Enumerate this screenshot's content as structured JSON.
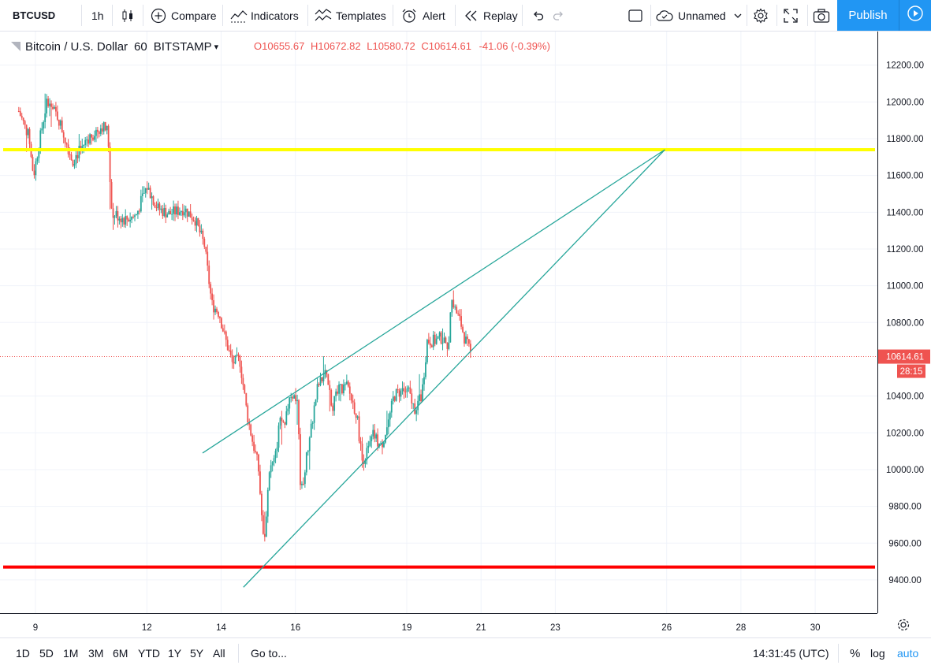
{
  "toolbar": {
    "symbol": "BTCUSD",
    "interval": "1h",
    "compare": "Compare",
    "indicators": "Indicators",
    "templates": "Templates",
    "alert": "Alert",
    "replay": "Replay",
    "layout_name": "Unnamed",
    "publish": "Publish"
  },
  "legend": {
    "title": "Bitcoin / U.S. Dollar",
    "interval": "60",
    "exchange": "BITSTAMP",
    "open_label": "O",
    "open": "10655.67",
    "high_label": "H",
    "high": "10672.82",
    "low_label": "L",
    "low": "10580.72",
    "close_label": "C",
    "close": "10614.61",
    "change": "-41.06 (-0.39%)"
  },
  "price_badge": {
    "price": "10614.61",
    "countdown": "28:15"
  },
  "bottom": {
    "ranges": [
      "1D",
      "5D",
      "1M",
      "3M",
      "6M",
      "YTD",
      "1Y",
      "5Y",
      "All"
    ],
    "goto": "Go to...",
    "clock": "14:31:45 (UTC)",
    "percent": "%",
    "log": "log",
    "auto": "auto"
  },
  "colors": {
    "up": "#26a69a",
    "down": "#ef5350",
    "accent": "#2196f3",
    "resistance": "#ffff00",
    "support": "#ff0000",
    "trendline": "#26a69a"
  },
  "chart_data": {
    "type": "candlestick",
    "x_ticks": [
      "9",
      "12",
      "14",
      "16",
      "19",
      "21",
      "23",
      "26",
      "28",
      "30"
    ],
    "y_ticks": [
      "12200.00",
      "12000.00",
      "11800.00",
      "11600.00",
      "11400.00",
      "11200.00",
      "11000.00",
      "10800.00",
      "10400.00",
      "10200.00",
      "10000.00",
      "9800.00",
      "9600.00",
      "9400.00"
    ],
    "ylim": [
      9240,
      12330
    ],
    "last_price": 10614.61,
    "x_days": [
      8.55,
      20.75
    ],
    "keypoints": [
      [
        8.55,
        11950
      ],
      [
        8.8,
        11820
      ],
      [
        8.95,
        11600
      ],
      [
        9.05,
        11720
      ],
      [
        9.3,
        12000
      ],
      [
        9.6,
        11920
      ],
      [
        10.0,
        11680
      ],
      [
        10.4,
        11800
      ],
      [
        10.8,
        11870
      ],
      [
        10.95,
        11840
      ],
      [
        11.05,
        11400
      ],
      [
        11.4,
        11360
      ],
      [
        11.7,
        11380
      ],
      [
        12.0,
        11540
      ],
      [
        12.3,
        11420
      ],
      [
        12.6,
        11390
      ],
      [
        13.0,
        11420
      ],
      [
        13.3,
        11360
      ],
      [
        13.55,
        11220
      ],
      [
        13.75,
        10900
      ],
      [
        13.95,
        10850
      ],
      [
        14.1,
        10720
      ],
      [
        14.3,
        10580
      ],
      [
        14.5,
        10600
      ],
      [
        14.7,
        10300
      ],
      [
        14.85,
        10150
      ],
      [
        15.0,
        10020
      ],
      [
        15.15,
        9580
      ],
      [
        15.3,
        10000
      ],
      [
        15.45,
        10050
      ],
      [
        15.6,
        10300
      ],
      [
        15.7,
        10200
      ],
      [
        15.85,
        10420
      ],
      [
        16.05,
        10380
      ],
      [
        16.15,
        9860
      ],
      [
        16.35,
        10130
      ],
      [
        16.6,
        10450
      ],
      [
        16.8,
        10520
      ],
      [
        17.0,
        10350
      ],
      [
        17.2,
        10440
      ],
      [
        17.4,
        10450
      ],
      [
        17.65,
        10300
      ],
      [
        17.8,
        10050
      ],
      [
        17.95,
        10100
      ],
      [
        18.1,
        10190
      ],
      [
        18.3,
        10120
      ],
      [
        18.5,
        10250
      ],
      [
        18.65,
        10400
      ],
      [
        18.85,
        10430
      ],
      [
        19.05,
        10420
      ],
      [
        19.2,
        10330
      ],
      [
        19.4,
        10400
      ],
      [
        19.55,
        10700
      ],
      [
        19.75,
        10700
      ],
      [
        19.95,
        10720
      ],
      [
        20.1,
        10640
      ],
      [
        20.2,
        10900
      ],
      [
        20.3,
        10870
      ],
      [
        20.45,
        10800
      ],
      [
        20.55,
        10720
      ],
      [
        20.75,
        10614.61
      ]
    ],
    "lines": [
      {
        "name": "resistance",
        "type": "horizontal",
        "price": 11740,
        "color": "#ffff00"
      },
      {
        "name": "support",
        "type": "horizontal",
        "price": 9470,
        "color": "#ff0000"
      },
      {
        "name": "upper-trend",
        "type": "trend",
        "from": [
          13.5,
          10090
        ],
        "to": [
          25.95,
          11740
        ],
        "color": "#26a69a"
      },
      {
        "name": "lower-trend",
        "type": "trend",
        "from": [
          14.6,
          9360
        ],
        "to": [
          25.95,
          11740
        ],
        "color": "#26a69a"
      },
      {
        "name": "last-price",
        "type": "dotted",
        "price": 10614.61,
        "color": "#ef5350"
      }
    ]
  }
}
